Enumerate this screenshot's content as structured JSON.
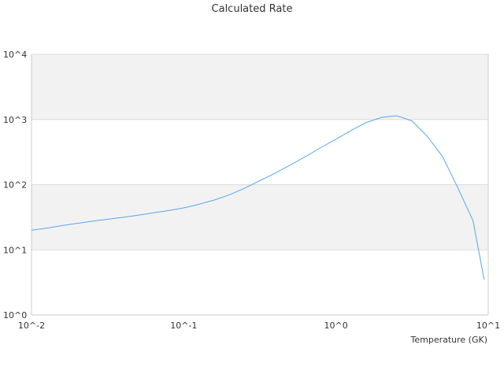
{
  "chart_data": {
    "type": "line",
    "title": "Calculated Rate",
    "xlabel": "Temperature (GK)",
    "ylabel": "",
    "x_scale": "log",
    "y_scale": "log",
    "xlim": [
      0.01,
      10
    ],
    "ylim": [
      1,
      10000
    ],
    "x_ticks": [
      "10^-2",
      "10^-1",
      "10^0",
      "10^1"
    ],
    "y_ticks": [
      "10^0",
      "10^1",
      "10^2",
      "10^3",
      "10^4"
    ],
    "grid": "alternating horizontal bands",
    "legend": "none",
    "colors": {
      "line": "#5aa6ec",
      "band": "#f2f2f2",
      "grid": "#dddddd",
      "axis": "#cccccc",
      "text": "#333333"
    },
    "series": [
      {
        "x": [
          0.01,
          0.0126,
          0.0158,
          0.02,
          0.0251,
          0.0316,
          0.0398,
          0.0501,
          0.0631,
          0.0794,
          0.1,
          0.126,
          0.158,
          0.2,
          0.251,
          0.316,
          0.398,
          0.501,
          0.631,
          0.794,
          1.0,
          1.26,
          1.58,
          2.0,
          2.51,
          3.16,
          3.98,
          5.01,
          6.31,
          7.94,
          9.4
        ],
        "y": [
          20,
          21.5,
          23.5,
          25.5,
          27.5,
          29.5,
          31.5,
          34,
          37,
          40,
          44,
          50,
          58,
          70,
          88,
          115,
          150,
          200,
          270,
          370,
          500,
          680,
          900,
          1080,
          1140,
          950,
          550,
          270,
          90,
          28,
          3.5
        ]
      }
    ]
  }
}
